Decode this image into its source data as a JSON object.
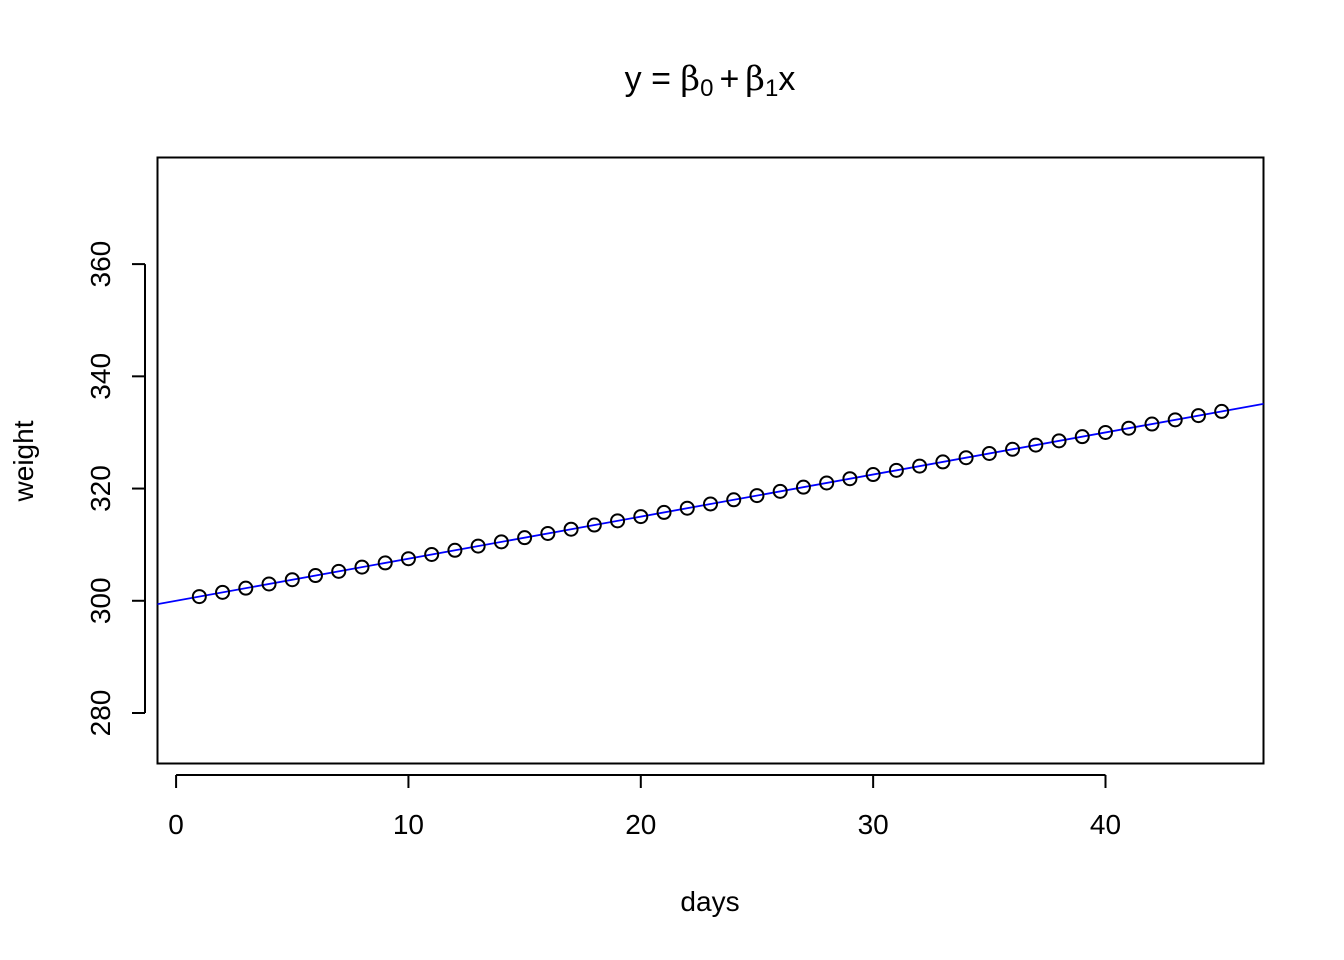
{
  "chart_data": {
    "type": "scatter",
    "title": {
      "prefix": "y = ",
      "beta": "β",
      "sub0": "0",
      "plus": "+",
      "sub1": "1",
      "suffix": "x"
    },
    "xlabel": "days",
    "ylabel": "weight",
    "xlim": [
      -0.8,
      46.8
    ],
    "ylim": [
      271,
      379
    ],
    "x_ticks": [
      "0",
      "10",
      "20",
      "30",
      "40"
    ],
    "y_ticks": [
      "280",
      "300",
      "320",
      "340",
      "360"
    ],
    "grid": false,
    "series": [
      {
        "marker": "open-circle",
        "x": [
          1,
          2,
          3,
          4,
          5,
          6,
          7,
          8,
          9,
          10,
          11,
          12,
          13,
          14,
          15,
          16,
          17,
          18,
          19,
          20,
          21,
          22,
          23,
          24,
          25,
          26,
          27,
          28,
          29,
          30,
          31,
          32,
          33,
          34,
          35,
          36,
          37,
          38,
          39,
          40,
          41,
          42,
          43,
          44,
          45
        ],
        "y": [
          300.75,
          301.5,
          302.25,
          303.0,
          303.75,
          304.5,
          305.25,
          306.0,
          306.75,
          307.5,
          308.25,
          309.0,
          309.75,
          310.5,
          311.25,
          312.0,
          312.75,
          313.5,
          314.25,
          315.0,
          315.75,
          316.5,
          317.25,
          318.0,
          318.75,
          319.5,
          320.25,
          321.0,
          321.75,
          322.5,
          323.25,
          324.0,
          324.75,
          325.5,
          326.25,
          327.0,
          327.75,
          328.5,
          329.25,
          330.0,
          330.75,
          331.5,
          332.25,
          333.0,
          333.75
        ]
      }
    ],
    "fit_line": {
      "intercept": 300,
      "slope": 0.75,
      "color": "#0000ff"
    },
    "colors": {
      "points": "#000000",
      "axes": "#000000"
    }
  }
}
